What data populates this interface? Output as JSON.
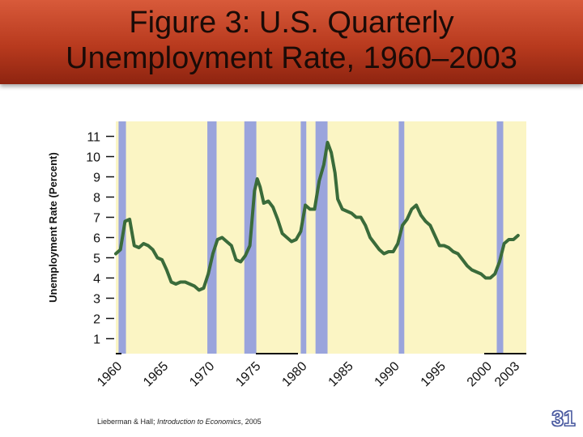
{
  "slide": {
    "title_line1": "Figure 3:  U.S. Quarterly",
    "title_line2": "Unemployment Rate, 1960–2003",
    "footer_author": "Lieberman & Hall; ",
    "footer_book": "Introduction to Economics",
    "footer_year": ", 2005",
    "slide_number": "31"
  },
  "colors": {
    "banner": "#b83a1e",
    "plot_background": "#fbf5c4",
    "recession_band": "#9aa4dc",
    "line": "#3a6b3a"
  },
  "chart_data": {
    "type": "line",
    "title": "",
    "xlabel": "",
    "ylabel": "Unemployment Rate (Percent)",
    "xlim": [
      1960,
      2004
    ],
    "ylim": [
      0,
      12
    ],
    "yticks": [
      1,
      2,
      3,
      4,
      5,
      6,
      7,
      8,
      9,
      10,
      11
    ],
    "xtick_labels": [
      "1960",
      "1965",
      "1970",
      "1975",
      "1980",
      "1985",
      "1990",
      "1995",
      "2000",
      "2003"
    ],
    "xtick_values": [
      1960,
      1965,
      1970,
      1975,
      1980,
      1985,
      1990,
      1995,
      2000,
      2003
    ],
    "recessions": [
      [
        1960.3,
        1961.1
      ],
      [
        1969.9,
        1970.9
      ],
      [
        1973.9,
        1975.2
      ],
      [
        1980.0,
        1980.6
      ],
      [
        1981.6,
        1982.9
      ],
      [
        1990.6,
        1991.2
      ],
      [
        2001.2,
        2001.9
      ]
    ],
    "series": [
      {
        "x": [
          1960.0,
          1960.5,
          1961.0,
          1961.5,
          1962.0,
          1962.5,
          1963.0,
          1963.5,
          1964.0,
          1964.5,
          1965.0,
          1965.5,
          1966.0,
          1966.5,
          1967.0,
          1967.5,
          1968.0,
          1968.5,
          1969.0,
          1969.5,
          1970.0,
          1970.5,
          1971.0,
          1971.5,
          1972.0,
          1972.5,
          1973.0,
          1973.5,
          1974.0,
          1974.5,
          1975.0,
          1975.3,
          1975.6,
          1976.0,
          1976.5,
          1977.0,
          1977.5,
          1978.0,
          1978.5,
          1979.0,
          1979.5,
          1980.0,
          1980.5,
          1981.0,
          1981.5,
          1982.0,
          1982.5,
          1982.9,
          1983.3,
          1983.7,
          1984.0,
          1984.5,
          1985.0,
          1985.5,
          1986.0,
          1986.5,
          1987.0,
          1987.5,
          1988.0,
          1988.5,
          1989.0,
          1989.5,
          1990.0,
          1990.5,
          1991.0,
          1991.5,
          1992.0,
          1992.5,
          1993.0,
          1993.5,
          1994.0,
          1994.5,
          1995.0,
          1995.5,
          1996.0,
          1996.5,
          1997.0,
          1997.5,
          1998.0,
          1998.5,
          1999.0,
          1999.5,
          2000.0,
          2000.5,
          2001.0,
          2001.5,
          2002.0,
          2002.5,
          2003.0,
          2003.5
        ],
        "values": [
          5.2,
          5.4,
          6.8,
          6.9,
          5.6,
          5.5,
          5.7,
          5.6,
          5.4,
          5.0,
          4.9,
          4.4,
          3.8,
          3.7,
          3.8,
          3.8,
          3.7,
          3.6,
          3.4,
          3.5,
          4.2,
          5.2,
          5.9,
          6.0,
          5.8,
          5.6,
          4.9,
          4.8,
          5.1,
          5.6,
          8.3,
          8.9,
          8.5,
          7.7,
          7.8,
          7.5,
          6.9,
          6.2,
          6.0,
          5.8,
          5.9,
          6.3,
          7.6,
          7.4,
          7.4,
          8.8,
          9.6,
          10.7,
          10.2,
          9.2,
          7.9,
          7.4,
          7.3,
          7.2,
          7.0,
          7.0,
          6.6,
          6.0,
          5.7,
          5.4,
          5.2,
          5.3,
          5.3,
          5.7,
          6.6,
          6.9,
          7.4,
          7.6,
          7.1,
          6.8,
          6.6,
          6.1,
          5.6,
          5.6,
          5.5,
          5.3,
          5.2,
          4.9,
          4.6,
          4.4,
          4.3,
          4.2,
          4.0,
          4.0,
          4.2,
          4.8,
          5.7,
          5.9,
          5.9,
          6.1
        ]
      }
    ]
  }
}
